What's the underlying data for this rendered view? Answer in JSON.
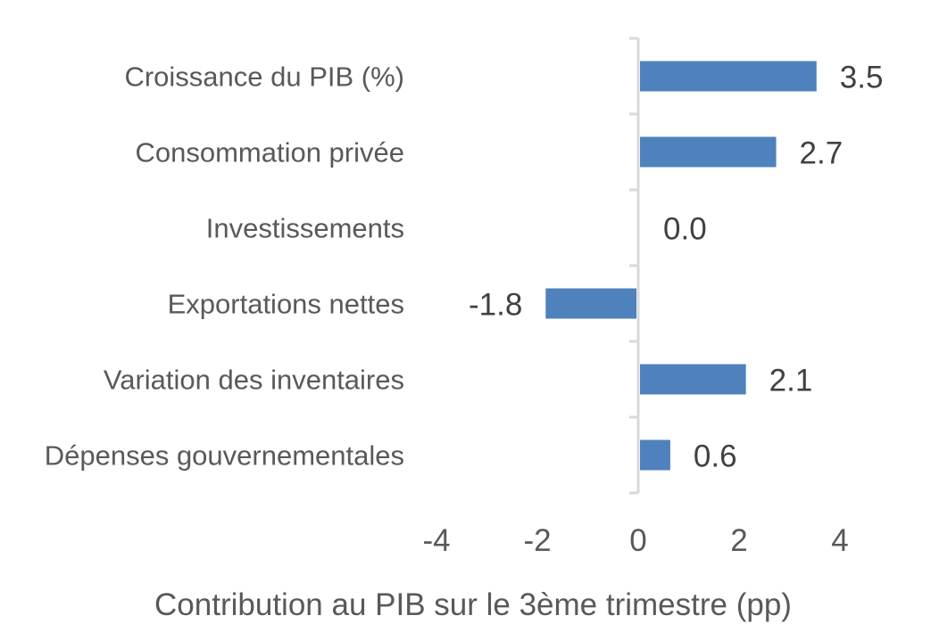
{
  "chart_data": {
    "type": "bar",
    "orientation": "horizontal",
    "categories": [
      "Croissance du PIB (%)",
      "Consommation privée",
      "Investissements",
      "Exportations nettes",
      "Variation des inventaires",
      "Dépenses gouvernementales"
    ],
    "values": [
      3.5,
      2.7,
      0.0,
      -1.8,
      2.1,
      0.6
    ],
    "value_labels": [
      "3.5",
      "2.7",
      "0.0",
      "-1.8",
      "2.1",
      "0.6"
    ],
    "xlabel": "Contribution au PIB sur le 3ème trimestre (pp)",
    "xlim": [
      -4,
      4
    ],
    "xticks": [
      -4,
      -2,
      0,
      2,
      4
    ],
    "grid": false,
    "bar_color": "#4f81bd"
  }
}
